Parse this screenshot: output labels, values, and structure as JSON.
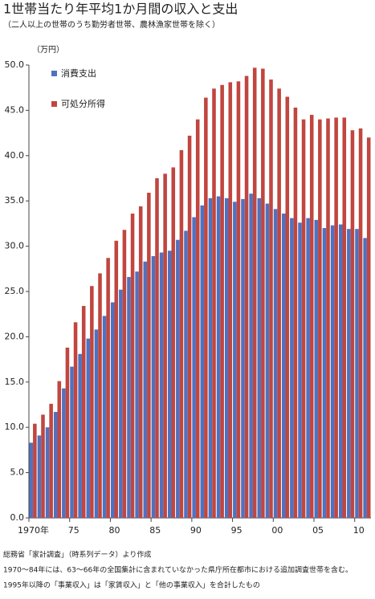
{
  "chart_data": {
    "type": "bar",
    "title": "1世帯当たり年平均1か月間の収入と支出",
    "subtitle": "（二人以上の世帯のうち勤労者世帯、農林漁家世帯を除く）",
    "y_label": "（万円）",
    "notes": [
      "総務省「家計調査」（時系列データ）より作成",
      "1970～84年には、63～66年の全国集計に含まれていなかった県庁所在都市における追加調査世帯を含む。",
      "1995年以降の「事業収入」は「家賃収入」と「他の事業収入」を合計したもの"
    ],
    "categories": [
      "1970年",
      null,
      null,
      null,
      null,
      "75",
      null,
      null,
      null,
      null,
      "80",
      null,
      null,
      null,
      null,
      "85",
      null,
      null,
      null,
      null,
      "90",
      null,
      null,
      null,
      null,
      "95",
      null,
      null,
      null,
      null,
      "00",
      null,
      null,
      null,
      null,
      "05",
      null,
      null,
      null,
      null,
      "10",
      null
    ],
    "series": [
      {
        "name": "消費支出",
        "color": "#4f72c0",
        "values": [
          8.3,
          9.1,
          10.0,
          11.7,
          14.3,
          16.7,
          18.1,
          19.8,
          20.8,
          22.3,
          23.8,
          25.2,
          26.6,
          27.2,
          28.3,
          28.9,
          29.3,
          29.5,
          30.7,
          31.7,
          33.2,
          34.5,
          35.3,
          35.5,
          35.3,
          34.9,
          35.2,
          35.8,
          35.3,
          34.7,
          34.1,
          33.6,
          33.1,
          32.6,
          33.1,
          32.9,
          32.0,
          32.3,
          32.4,
          31.9,
          31.9,
          30.9
        ]
      },
      {
        "name": "可処分所得",
        "color": "#c0463f",
        "values": [
          10.4,
          11.4,
          12.6,
          15.1,
          18.8,
          21.6,
          23.4,
          25.6,
          27.0,
          28.7,
          30.6,
          31.8,
          33.6,
          34.4,
          35.9,
          37.5,
          38.0,
          38.7,
          40.6,
          42.2,
          44.0,
          46.4,
          47.4,
          47.8,
          48.1,
          48.2,
          48.8,
          49.7,
          49.6,
          48.4,
          47.4,
          46.5,
          45.3,
          44.0,
          44.5,
          44.0,
          44.1,
          44.2,
          44.2,
          42.8,
          43.0,
          42.0
        ]
      }
    ],
    "ylim": [
      0,
      50
    ],
    "yticks": [
      {
        "value": 0,
        "label": "0.0"
      },
      {
        "value": 5,
        "label": "5.0"
      },
      {
        "value": 10,
        "label": "10.0"
      },
      {
        "value": 15,
        "label": "15.0"
      },
      {
        "value": 20,
        "label": "20.0"
      },
      {
        "value": 25,
        "label": "25.0"
      },
      {
        "value": 30,
        "label": "30.0"
      },
      {
        "value": 35,
        "label": "35.0"
      },
      {
        "value": 40,
        "label": "40.0"
      },
      {
        "value": 45,
        "label": "45.0"
      },
      {
        "value": 50,
        "label": "50.0"
      }
    ],
    "legend": "top-left"
  }
}
